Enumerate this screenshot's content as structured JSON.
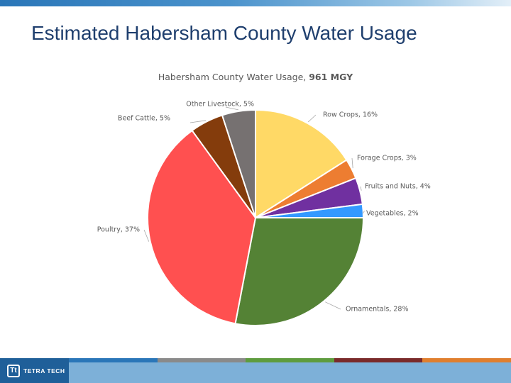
{
  "slide": {
    "title": "Estimated Habersham County Water Usage"
  },
  "footer": {
    "logo_text": "TETRA TECH",
    "logo_mark": "Tt",
    "stripe_colors": [
      "#2a76b8",
      "#8a8a8a",
      "#5e9c3e",
      "#7a2a2a",
      "#e07f2e"
    ]
  },
  "chart_data": {
    "type": "pie",
    "title": "Habersham County Water Usage,",
    "title_value": "961 MGY",
    "start_angle": 0,
    "direction": "clockwise",
    "slices": [
      {
        "label": "Row Crops, 16%",
        "value": 16,
        "color": "#ffd966"
      },
      {
        "label": "Forage Crops, 3%",
        "value": 3,
        "color": "#ed7d31"
      },
      {
        "label": "Fruits and Nuts, 4%",
        "value": 4,
        "color": "#7030a0"
      },
      {
        "label": "Vegetables, 2%",
        "value": 2,
        "color": "#3399ff"
      },
      {
        "label": "Ornamentals, 28%",
        "value": 28,
        "color": "#548235"
      },
      {
        "label": "Poultry, 37%",
        "value": 37,
        "color": "#ff5050"
      },
      {
        "label": "Beef Cattle, 5%",
        "value": 5,
        "color": "#843c0c"
      },
      {
        "label": "Other Livestock, 5%",
        "value": 5,
        "color": "#767171"
      }
    ]
  }
}
